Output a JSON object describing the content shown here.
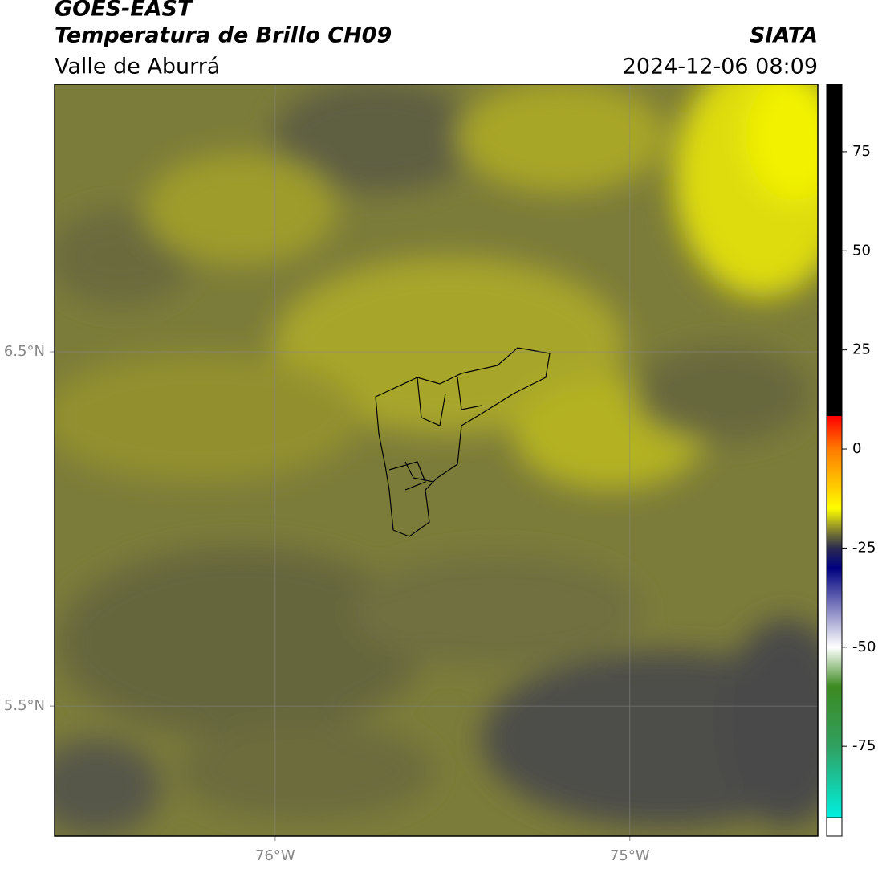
{
  "header": {
    "title": "GOES-EAST",
    "subtitle": "Temperatura de Brillo CH09",
    "region": "Valle de Aburrá",
    "source": "SIATA",
    "datetime": "2024-12-06 08:09"
  },
  "map": {
    "lonlim": [
      -76.622,
      -74.47
    ],
    "latlim": [
      5.133,
      7.255
    ],
    "lonticks": [
      {
        "value": -76,
        "label": "76°W"
      },
      {
        "value": -75,
        "label": "75°W"
      }
    ],
    "latticks": [
      {
        "value": 6.5,
        "label": "6.5°N"
      },
      {
        "value": 5.5,
        "label": "5.5°N"
      }
    ],
    "grid": true
  },
  "colorbar": {
    "clim": [
      -93,
      92
    ],
    "ticks": [
      75,
      50,
      25,
      0,
      -25,
      -50,
      -75
    ],
    "under_color": "#ffffff",
    "stops": [
      {
        "value": 92,
        "color": "#000000"
      },
      {
        "value": 8.3,
        "color": "#000000"
      },
      {
        "value": 8.3,
        "color": "#ff0000"
      },
      {
        "value": 0,
        "color": "#ff7a00"
      },
      {
        "value": -10,
        "color": "#ffd000"
      },
      {
        "value": -15,
        "color": "#ffff00"
      },
      {
        "value": -21,
        "color": "#7a7a30"
      },
      {
        "value": -25,
        "color": "#2a2a50"
      },
      {
        "value": -30,
        "color": "#000080"
      },
      {
        "value": -40,
        "color": "#8080c0"
      },
      {
        "value": -50,
        "color": "#ffffff"
      },
      {
        "value": -60,
        "color": "#3c8a20"
      },
      {
        "value": -75,
        "color": "#30a060"
      },
      {
        "value": -93,
        "color": "#00f0e0"
      }
    ]
  }
}
